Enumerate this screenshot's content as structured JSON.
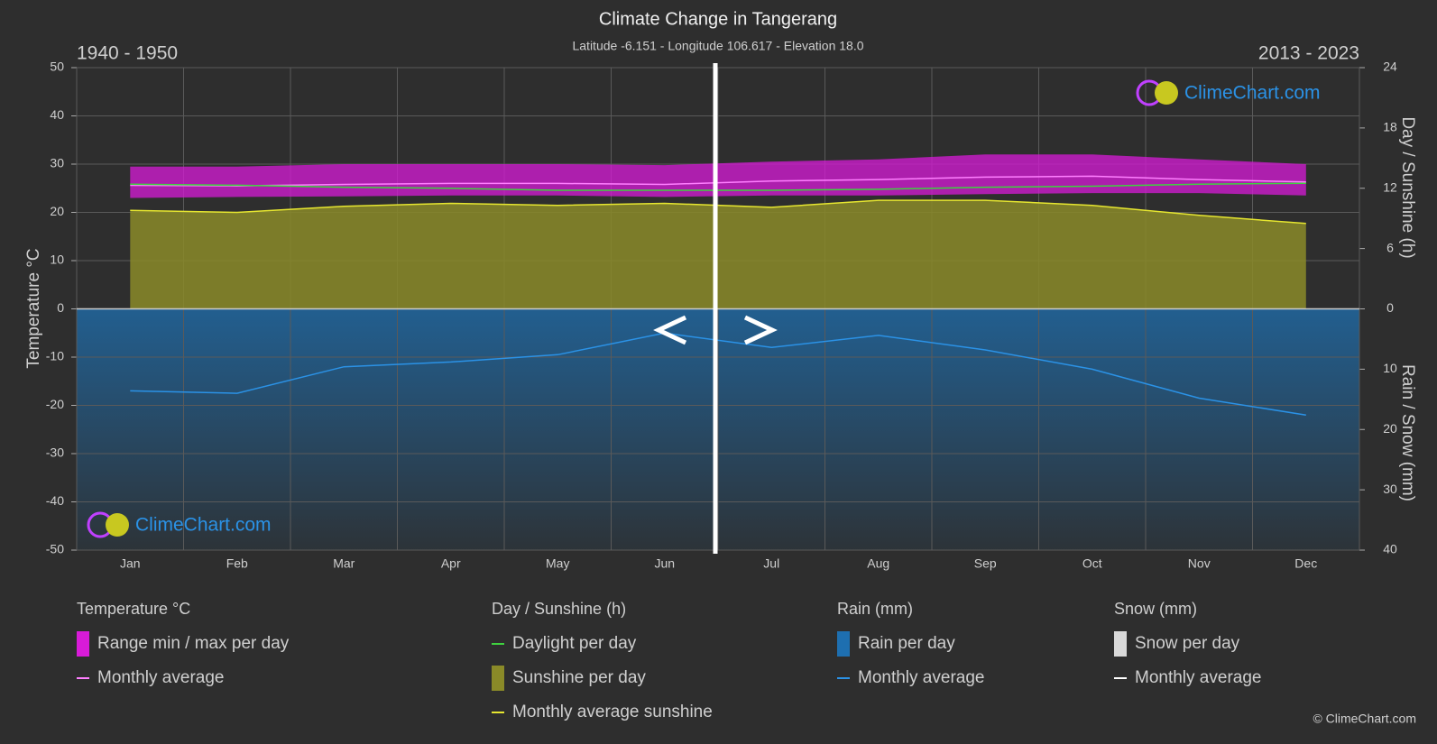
{
  "chart_data": {
    "type": "climate",
    "title": "Climate Change in Tangerang",
    "subtitle": "Latitude -6.151 - Longitude 106.617 - Elevation 18.0",
    "left_period": "1940 - 1950",
    "right_period": "2013 - 2023",
    "watermark": "ClimeChart.com",
    "copyright": "© ClimeChart.com",
    "categories": [
      "Jan",
      "Feb",
      "Mar",
      "Apr",
      "May",
      "Jun",
      "Jul",
      "Aug",
      "Sep",
      "Oct",
      "Nov",
      "Dec"
    ],
    "ylabel": "Temperature °C",
    "ylim": [
      -50,
      50
    ],
    "yticks": [
      50,
      40,
      30,
      20,
      10,
      0,
      -10,
      -20,
      -30,
      -40,
      -50
    ],
    "y2label": "Day / Sunshine (h)",
    "y2lim": [
      0,
      24
    ],
    "y2ticks": [
      0,
      6,
      12,
      18,
      24
    ],
    "y3label": "Rain / Snow (mm)",
    "y3lim": [
      0,
      40
    ],
    "y3ticks": [
      10,
      20,
      30,
      40
    ],
    "grid": true,
    "groups": [
      {
        "title": "Temperature °C",
        "axis": "y",
        "series": [
          {
            "name": "Range min / max per day",
            "color": "#d81bd8",
            "max": [
              29.5,
              29.5,
              30,
              30,
              30,
              29.8,
              30.5,
              31,
              32,
              32,
              31,
              30
            ],
            "min": [
              23,
              23.2,
              23.3,
              23.5,
              23.5,
              23.2,
              23.5,
              23.5,
              23.8,
              24,
              24,
              23.5
            ]
          },
          {
            "name": "Monthly average",
            "color": "#ff7fff",
            "values": [
              25.6,
              25.5,
              25.8,
              26,
              26,
              25.8,
              26.5,
              26.8,
              27.3,
              27.5,
              26.8,
              26.3
            ]
          }
        ]
      },
      {
        "title": "Day / Sunshine (h)",
        "axis": "y2",
        "series": [
          {
            "name": "Daylight per day",
            "color": "#3fd23f",
            "values": [
              12.4,
              12.3,
              12.1,
              12,
              11.8,
              11.8,
              11.8,
              11.9,
              12.1,
              12.2,
              12.4,
              12.5
            ]
          },
          {
            "name": "Sunshine per day",
            "color": "#8a8a28"
          },
          {
            "name": "Monthly average sunshine",
            "color": "#e6e630",
            "values": [
              9.8,
              9.6,
              10.2,
              10.5,
              10.3,
              10.5,
              10.1,
              10.8,
              10.8,
              10.3,
              9.3,
              8.5
            ]
          }
        ]
      },
      {
        "title": "Rain (mm)",
        "axis": "y3",
        "series": [
          {
            "name": "Rain per day",
            "color": "#1e6fb0"
          },
          {
            "name": "Monthly average",
            "color": "#2b92e6",
            "values": [
              13.6,
              14,
              9.6,
              8.8,
              7.6,
              4,
              6.4,
              4.4,
              6.8,
              10,
              14.8,
              17.6
            ]
          }
        ]
      },
      {
        "title": "Snow (mm)",
        "axis": "y3",
        "series": [
          {
            "name": "Snow per day",
            "color": "#d9d9d9"
          },
          {
            "name": "Monthly average",
            "color": "#ffffff"
          }
        ]
      }
    ]
  }
}
